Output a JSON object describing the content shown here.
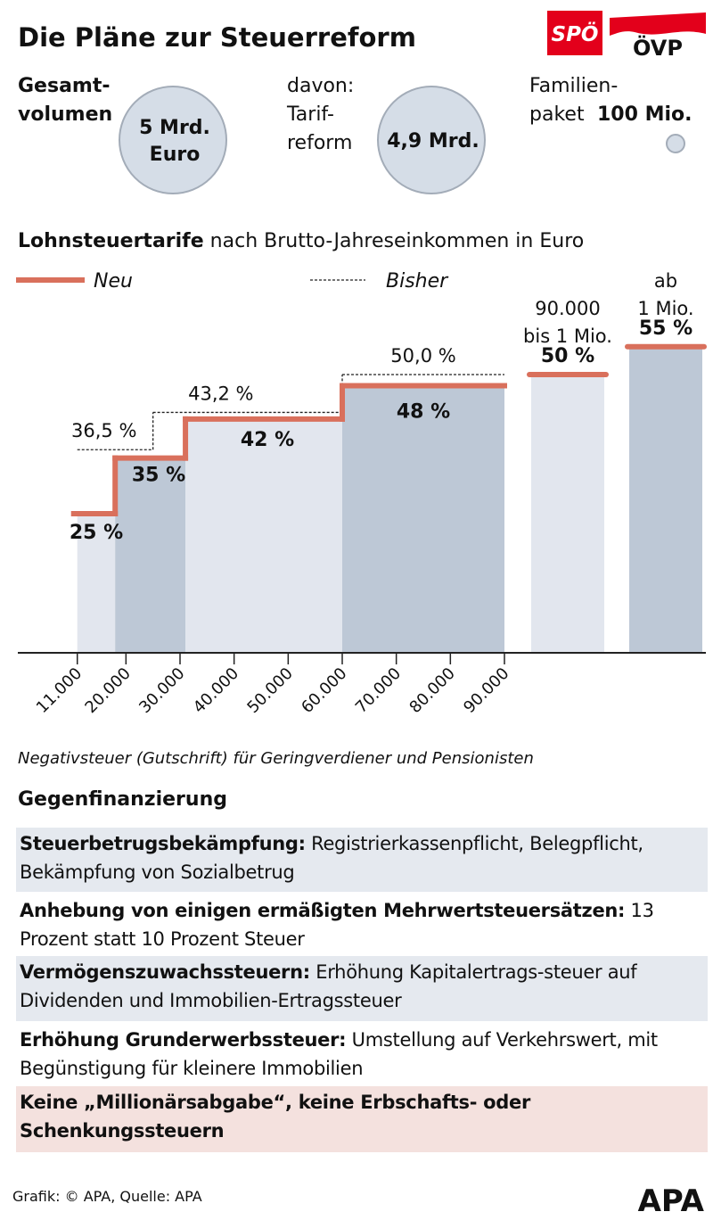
{
  "title": "Die Pläne zur Steuerreform",
  "logos": [
    "SPÖ",
    "ÖVP"
  ],
  "volume": {
    "total_label": "Gesamt-\nvolumen",
    "total_value": "5 Mrd.\nEuro",
    "tariff_label": "davon:\nTarif-\nreform",
    "tariff_value": "4,9 Mrd.",
    "family_label": "Familien-\npaket",
    "family_value": "100 Mio."
  },
  "chart_data": {
    "type": "step",
    "title": "Lohnsteuertarife",
    "subtitle": "nach Brutto-Jahreseinkommen in Euro",
    "xlim": [
      0,
      90000
    ],
    "xticks": [
      {
        "value": 11000,
        "label": "11.000"
      },
      {
        "value": 20000,
        "label": "20.000"
      },
      {
        "value": 30000,
        "label": "30.000"
      },
      {
        "value": 40000,
        "label": "40.000"
      },
      {
        "value": 50000,
        "label": "50.000"
      },
      {
        "value": 60000,
        "label": "60.000"
      },
      {
        "value": 70000,
        "label": "70.000"
      },
      {
        "value": 80000,
        "label": "80.000"
      },
      {
        "value": 90000,
        "label": "90.000"
      }
    ],
    "band_colors": [
      "#e2e6ee",
      "#bdc8d6"
    ],
    "series": [
      {
        "name": "Neu",
        "color": "#d9705c",
        "dashed": false,
        "edges": [
          11000,
          18000,
          31000,
          60000,
          90000
        ],
        "values": [
          25,
          35,
          42,
          48
        ],
        "value_labels": [
          "25 %",
          "35 %",
          "42 %",
          "48 %"
        ]
      },
      {
        "name": "Bisher",
        "color": "#222222",
        "dashed": true,
        "edges": [
          11000,
          25000,
          60000,
          90000
        ],
        "values": [
          36.5,
          43.2,
          50.0
        ],
        "value_labels": [
          "36,5 %",
          "43,2 %",
          "50,0 %"
        ]
      }
    ],
    "upper_brackets": [
      {
        "label": "90.000\nbis 1 Mio.",
        "value": 50,
        "value_label": "50 %"
      },
      {
        "label": "ab\n1 Mio.",
        "value": 55,
        "value_label": "55 %"
      }
    ],
    "note": "Negativsteuer (Gutschrift) für Geringverdiener und Pensionisten"
  },
  "financing": {
    "title": "Gegenfinanzierung",
    "items": [
      {
        "heading": "Steuerbetrugsbekämpfung:",
        "text": "Registrierkassenpflicht, Belegpflicht, Bekämpfung von Sozialbetrug"
      },
      {
        "heading": "Anhebung von einigen ermäßigten Mehrwertsteuersätzen:",
        "text": "13 Prozent statt 10 Prozent Steuer"
      },
      {
        "heading": "Vermögenszuwachssteuern:",
        "text": "Erhöhung Kapitalertrags-steuer auf Dividenden und Immobilien-Ertragssteuer"
      },
      {
        "heading": "Erhöhung Grunderwerbssteuer:",
        "text": "Umstellung auf Verkehrswert, mit Begünstigung für kleinere Immobilien"
      },
      {
        "heading": "Keine „Millionärsabgabe“, keine Erbschafts- oder Schenkungssteuern"
      }
    ]
  },
  "footer": {
    "source": "Grafik: © APA, Quelle: APA",
    "logo": "APA"
  }
}
